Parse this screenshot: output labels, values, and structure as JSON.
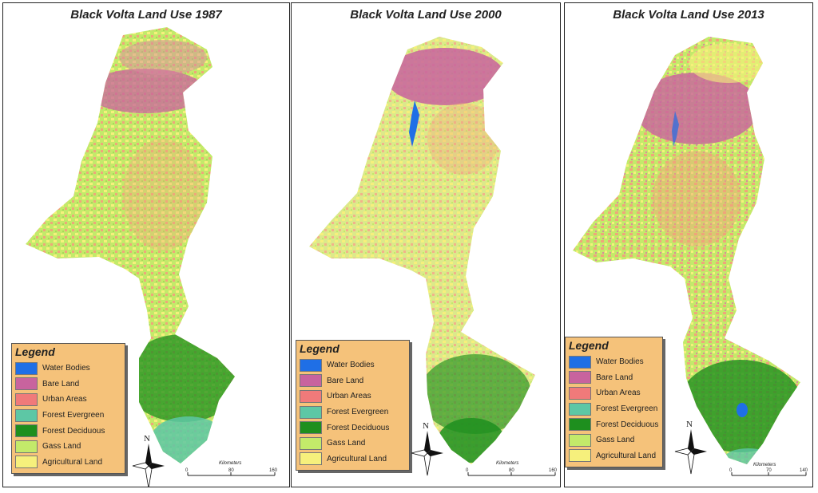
{
  "maps": [
    {
      "title": "Black Volta Land Use 1987",
      "scale": {
        "title": "Kilometers",
        "ticks": [
          "0",
          "80",
          "160"
        ]
      }
    },
    {
      "title": "Black Volta Land Use 2000",
      "scale": {
        "title": "Kilometers",
        "ticks": [
          "0",
          "80",
          "160"
        ]
      }
    },
    {
      "title": "Black Volta Land Use 2013",
      "scale": {
        "title": "Kilometers",
        "ticks": [
          "0",
          "70",
          "140"
        ]
      }
    }
  ],
  "legend": {
    "title": "Legend",
    "items": [
      {
        "label": "Water Bodies",
        "color": "#1f6fe6"
      },
      {
        "label": "Bare Land",
        "color": "#c8639e"
      },
      {
        "label": "Urban Areas",
        "color": "#f07a7a"
      },
      {
        "label": "Forest Evergreen",
        "color": "#5dc7a5"
      },
      {
        "label": "Forest Deciduous",
        "color": "#1e8f1e"
      },
      {
        "label": "Gass Land",
        "color": "#c3ea6a"
      },
      {
        "label": "Agricultural Land",
        "color": "#f6f07c"
      }
    ]
  },
  "north_label": "N"
}
